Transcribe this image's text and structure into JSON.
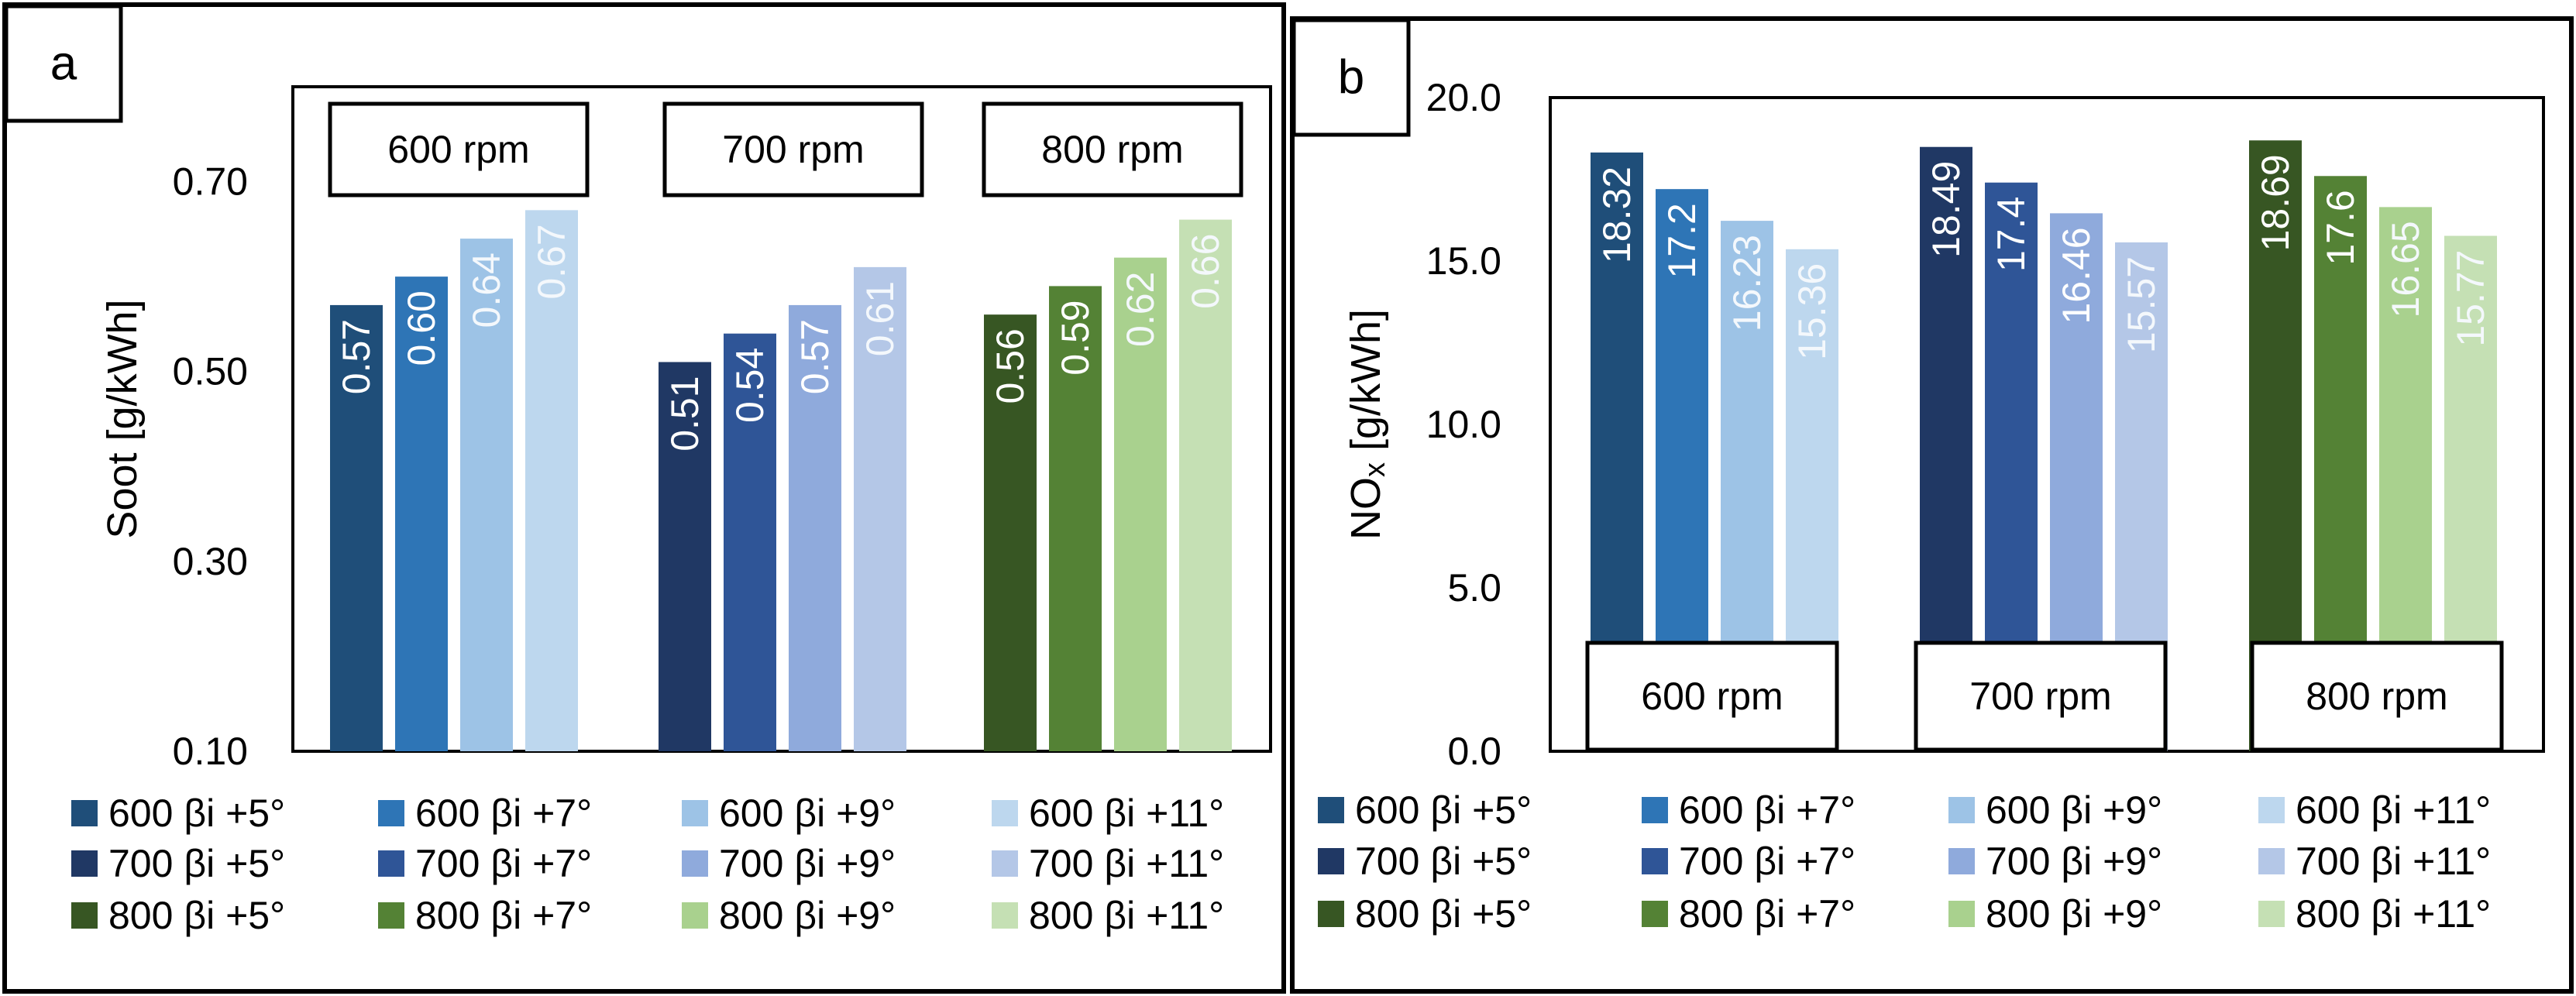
{
  "chart_data": [
    {
      "type": "bar",
      "panel_label": "a",
      "ylabel": "Soot [g/kWh]",
      "ylim": [
        0.1,
        0.8
      ],
      "yticks": [
        "0.10",
        "0.30",
        "0.50",
        "0.70"
      ],
      "ytick_values": [
        0.1,
        0.3,
        0.5,
        0.7
      ],
      "group_labels": [
        "600 rpm",
        "700 rpm",
        "800 rpm"
      ],
      "group_label_position": "top",
      "series": [
        {
          "name": "600 βi +5°",
          "group": 0,
          "value": 0.57,
          "label": "0.57",
          "color": "#1f4e79"
        },
        {
          "name": "600 βi +7°",
          "group": 0,
          "value": 0.6,
          "label": "0.60",
          "color": "#2e75b6"
        },
        {
          "name": "600 βi +9°",
          "group": 0,
          "value": 0.64,
          "label": "0.64",
          "color": "#9dc3e6"
        },
        {
          "name": "600 βi +11°",
          "group": 0,
          "value": 0.67,
          "label": "0.67",
          "color": "#bdd7ee"
        },
        {
          "name": "700 βi +5°",
          "group": 1,
          "value": 0.51,
          "label": "0.51",
          "color": "#203864"
        },
        {
          "name": "700 βi +7°",
          "group": 1,
          "value": 0.54,
          "label": "0.54",
          "color": "#2f5597"
        },
        {
          "name": "700 βi +9°",
          "group": 1,
          "value": 0.57,
          "label": "0.57",
          "color": "#8faadc"
        },
        {
          "name": "700 βi +11°",
          "group": 1,
          "value": 0.61,
          "label": "0.61",
          "color": "#b4c7e7"
        },
        {
          "name": "800 βi +5°",
          "group": 2,
          "value": 0.56,
          "label": "0.56",
          "color": "#375623"
        },
        {
          "name": "800 βi +7°",
          "group": 2,
          "value": 0.59,
          "label": "0.59",
          "color": "#548235"
        },
        {
          "name": "800 βi +9°",
          "group": 2,
          "value": 0.62,
          "label": "0.62",
          "color": "#a9d18e"
        },
        {
          "name": "800 βi +11°",
          "group": 2,
          "value": 0.66,
          "label": "0.66",
          "color": "#c5e0b4"
        }
      ],
      "legend_position": "bottom",
      "grid": false
    },
    {
      "type": "bar",
      "panel_label": "b",
      "ylabel_main": "NO",
      "ylabel_sub": "x",
      "ylabel_rest": " [g/kWh]",
      "ylim": [
        0,
        20
      ],
      "yticks": [
        "0.0",
        "5.0",
        "10.0",
        "15.0",
        "20.0"
      ],
      "ytick_values": [
        0,
        5,
        10,
        15,
        20
      ],
      "group_labels": [
        "600 rpm",
        "700 rpm",
        "800 rpm"
      ],
      "group_label_position": "bottom",
      "series": [
        {
          "name": "600 βi +5°",
          "group": 0,
          "value": 18.32,
          "label": "18.32",
          "color": "#1f4e79"
        },
        {
          "name": "600 βi +7°",
          "group": 0,
          "value": 17.2,
          "label": "17.2",
          "color": "#2e75b6"
        },
        {
          "name": "600 βi +9°",
          "group": 0,
          "value": 16.23,
          "label": "16.23",
          "color": "#9dc3e6"
        },
        {
          "name": "600 βi +11°",
          "group": 0,
          "value": 15.36,
          "label": "15.36",
          "color": "#bdd7ee"
        },
        {
          "name": "700 βi +5°",
          "group": 1,
          "value": 18.49,
          "label": "18.49",
          "color": "#203864"
        },
        {
          "name": "700 βi +7°",
          "group": 1,
          "value": 17.4,
          "label": "17.4",
          "color": "#2f5597"
        },
        {
          "name": "700 βi +9°",
          "group": 1,
          "value": 16.46,
          "label": "16.46",
          "color": "#8faadc"
        },
        {
          "name": "700 βi +11°",
          "group": 1,
          "value": 15.57,
          "label": "15.57",
          "color": "#b4c7e7"
        },
        {
          "name": "800 βi +5°",
          "group": 2,
          "value": 18.69,
          "label": "18.69",
          "color": "#375623"
        },
        {
          "name": "800 βi +7°",
          "group": 2,
          "value": 17.6,
          "label": "17.6",
          "color": "#548235"
        },
        {
          "name": "800 βi +9°",
          "group": 2,
          "value": 16.65,
          "label": "16.65",
          "color": "#a9d18e"
        },
        {
          "name": "800 βi +11°",
          "group": 2,
          "value": 15.77,
          "label": "15.77",
          "color": "#c5e0b4"
        }
      ],
      "legend_position": "bottom",
      "grid": false
    }
  ]
}
